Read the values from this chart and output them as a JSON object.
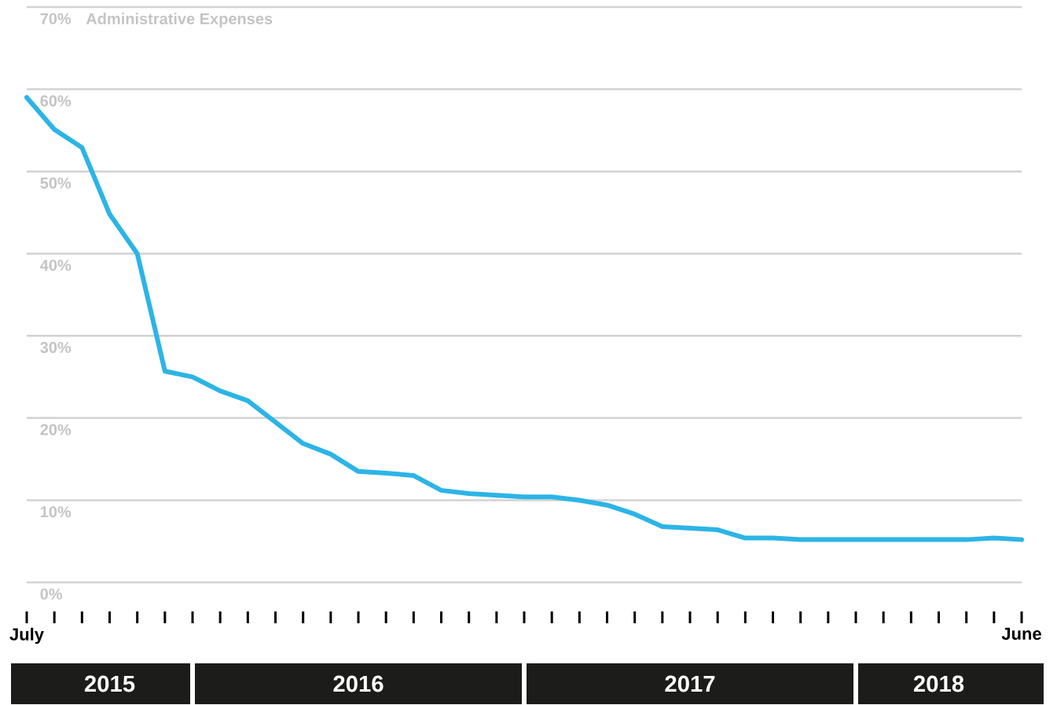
{
  "chart_data": {
    "type": "line",
    "ylabel": "Administrative Expenses",
    "categories": [
      "July",
      null,
      null,
      null,
      null,
      null,
      null,
      null,
      null,
      null,
      null,
      null,
      null,
      null,
      null,
      null,
      null,
      null,
      null,
      null,
      null,
      null,
      null,
      null,
      null,
      null,
      null,
      null,
      null,
      null,
      null,
      null,
      null,
      null,
      null,
      null,
      "June"
    ],
    "values": [
      59.0,
      55.1,
      52.9,
      44.8,
      40.0,
      25.7,
      25.0,
      23.3,
      22.1,
      19.5,
      16.9,
      15.6,
      13.5,
      13.3,
      13.0,
      11.2,
      10.8,
      10.6,
      10.4,
      10.4,
      10.0,
      9.4,
      8.3,
      6.8,
      6.6,
      6.4,
      5.4,
      5.4,
      5.2,
      5.2,
      5.2,
      5.2,
      5.2,
      5.2,
      5.2,
      5.4,
      5.2
    ],
    "color": "#2cb4e6",
    "ylim": [
      0,
      70
    ],
    "yticks": [
      {
        "value": 0,
        "label": "0%"
      },
      {
        "value": 10,
        "label": "10%"
      },
      {
        "value": 20,
        "label": "20%"
      },
      {
        "value": 30,
        "label": "30%"
      },
      {
        "value": 40,
        "label": "40%"
      },
      {
        "value": 50,
        "label": "50%"
      },
      {
        "value": 60,
        "label": "60%"
      },
      {
        "value": 70,
        "label": "70%"
      }
    ],
    "grid": "y",
    "annotations": [
      "2015",
      "2016",
      "2017",
      "2018"
    ]
  }
}
